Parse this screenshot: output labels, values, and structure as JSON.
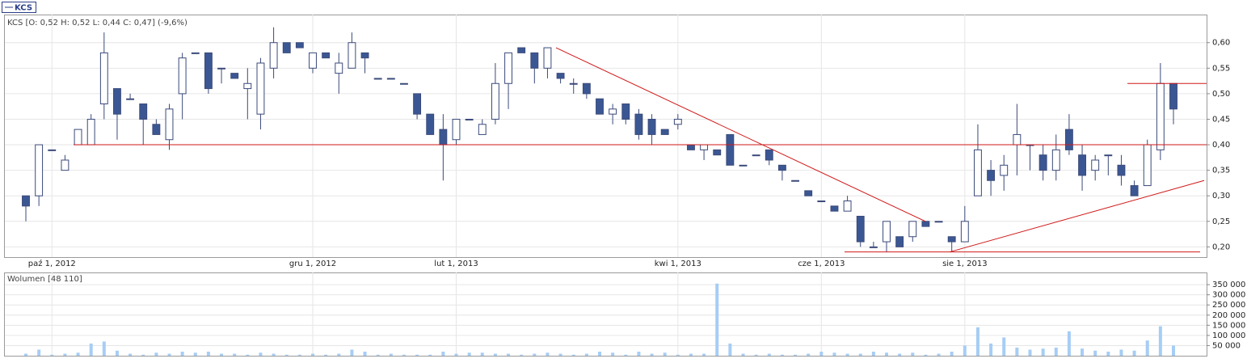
{
  "chart_data": {
    "type": "candlestick",
    "series_name": "KCS",
    "title": "KCS [O: 0,52  H: 0,52  L: 0,44  C: 0,47] (-9,6%)",
    "up_color": "#ffffff",
    "down_color": "#3b5793",
    "outline_color": "#3b4a7a",
    "grid": true,
    "categories": [
      null,
      null,
      "paź 1, 2012",
      null,
      null,
      null,
      null,
      null,
      null,
      null,
      null,
      null,
      null,
      null,
      null,
      null,
      null,
      null,
      null,
      null,
      null,
      null,
      "gru 1, 2012",
      null,
      null,
      null,
      null,
      null,
      null,
      null,
      null,
      null,
      null,
      "lut 1, 2013",
      null,
      null,
      null,
      null,
      null,
      null,
      null,
      null,
      null,
      null,
      null,
      null,
      null,
      null,
      null,
      null,
      "kwi 1, 2013",
      null,
      null,
      null,
      null,
      null,
      null,
      null,
      null,
      null,
      null,
      "cze 1, 2013",
      null,
      null,
      null,
      null,
      null,
      null,
      null,
      null,
      null,
      null,
      "sie 1, 2013",
      null,
      null,
      null,
      null,
      null,
      null,
      null,
      null,
      null,
      null,
      null,
      null,
      null,
      null,
      null,
      null
    ],
    "open": [
      0.3,
      0.3,
      0.39,
      0.35,
      0.4,
      0.4,
      0.48,
      0.51,
      0.49,
      0.48,
      0.44,
      0.41,
      0.5,
      0.58,
      0.58,
      0.55,
      0.54,
      0.51,
      0.46,
      0.55,
      0.6,
      0.6,
      0.55,
      0.58,
      0.54,
      0.55,
      0.58,
      0.53,
      0.53,
      0.52,
      0.5,
      0.46,
      0.43,
      0.41,
      0.45,
      0.42,
      0.45,
      0.52,
      0.59,
      0.58,
      0.55,
      0.54,
      0.52,
      0.52,
      0.49,
      0.46,
      0.48,
      0.46,
      0.45,
      0.43,
      0.44,
      0.4,
      0.39,
      0.39,
      0.42,
      0.36,
      0.38,
      0.39,
      0.36,
      0.33,
      0.31,
      0.29,
      0.28,
      0.27,
      0.26,
      0.2,
      0.21,
      0.22,
      0.22,
      0.25,
      0.25,
      0.22,
      0.21,
      0.3,
      0.35,
      0.34,
      0.4,
      0.4,
      0.38,
      0.35,
      0.43,
      0.38,
      0.35,
      0.38,
      0.36,
      0.32,
      0.32,
      0.39,
      0.52
    ],
    "high": [
      0.3,
      0.4,
      0.39,
      0.38,
      0.43,
      0.46,
      0.62,
      0.51,
      0.5,
      0.48,
      0.45,
      0.48,
      0.58,
      0.58,
      0.58,
      0.55,
      0.54,
      0.55,
      0.57,
      0.63,
      0.6,
      0.6,
      0.58,
      0.58,
      0.58,
      0.62,
      0.58,
      0.53,
      0.53,
      0.52,
      0.5,
      0.46,
      0.46,
      0.45,
      0.45,
      0.45,
      0.56,
      0.58,
      0.59,
      0.58,
      0.59,
      0.54,
      0.53,
      0.52,
      0.49,
      0.48,
      0.48,
      0.47,
      0.46,
      0.43,
      0.46,
      0.4,
      0.4,
      0.39,
      0.42,
      0.36,
      0.38,
      0.39,
      0.36,
      0.33,
      0.31,
      0.29,
      0.28,
      0.3,
      0.26,
      0.21,
      0.25,
      0.22,
      0.25,
      0.25,
      0.25,
      0.22,
      0.28,
      0.44,
      0.37,
      0.38,
      0.48,
      0.4,
      0.4,
      0.42,
      0.46,
      0.4,
      0.38,
      0.38,
      0.38,
      0.33,
      0.41,
      0.56,
      0.52
    ],
    "low": [
      0.25,
      0.28,
      0.39,
      0.35,
      0.4,
      0.4,
      0.45,
      0.41,
      0.49,
      0.4,
      0.42,
      0.39,
      0.45,
      0.58,
      0.5,
      0.52,
      0.53,
      0.45,
      0.43,
      0.53,
      0.58,
      0.59,
      0.54,
      0.57,
      0.5,
      0.55,
      0.54,
      0.53,
      0.53,
      0.52,
      0.45,
      0.42,
      0.33,
      0.4,
      0.45,
      0.42,
      0.44,
      0.47,
      0.58,
      0.52,
      0.53,
      0.52,
      0.5,
      0.49,
      0.46,
      0.44,
      0.44,
      0.41,
      0.4,
      0.42,
      0.43,
      0.39,
      0.37,
      0.38,
      0.36,
      0.36,
      0.38,
      0.36,
      0.33,
      0.33,
      0.3,
      0.29,
      0.27,
      0.27,
      0.2,
      0.2,
      0.19,
      0.2,
      0.21,
      0.24,
      0.25,
      0.19,
      0.21,
      0.3,
      0.3,
      0.31,
      0.34,
      0.35,
      0.33,
      0.33,
      0.38,
      0.31,
      0.33,
      0.34,
      0.32,
      0.3,
      0.32,
      0.37,
      0.44
    ],
    "close": [
      0.28,
      0.4,
      0.39,
      0.37,
      0.43,
      0.45,
      0.58,
      0.46,
      0.49,
      0.45,
      0.42,
      0.47,
      0.57,
      0.58,
      0.51,
      0.55,
      0.53,
      0.52,
      0.56,
      0.6,
      0.58,
      0.59,
      0.58,
      0.57,
      0.56,
      0.6,
      0.57,
      0.53,
      0.53,
      0.52,
      0.46,
      0.42,
      0.4,
      0.45,
      0.45,
      0.44,
      0.52,
      0.58,
      0.58,
      0.55,
      0.59,
      0.53,
      0.52,
      0.5,
      0.46,
      0.47,
      0.45,
      0.42,
      0.42,
      0.42,
      0.45,
      0.39,
      0.4,
      0.38,
      0.36,
      0.36,
      0.38,
      0.37,
      0.35,
      0.33,
      0.3,
      0.29,
      0.27,
      0.29,
      0.21,
      0.2,
      0.25,
      0.2,
      0.25,
      0.24,
      0.25,
      0.21,
      0.25,
      0.39,
      0.33,
      0.36,
      0.42,
      0.4,
      0.35,
      0.39,
      0.39,
      0.34,
      0.37,
      0.38,
      0.34,
      0.3,
      0.4,
      0.52,
      0.47
    ],
    "ylim": [
      0.18,
      0.655
    ],
    "yticks": [
      {
        "value": 0.2,
        "label": "0,20"
      },
      {
        "value": 0.25,
        "label": "0,25"
      },
      {
        "value": 0.3,
        "label": "0,30"
      },
      {
        "value": 0.35,
        "label": "0,35"
      },
      {
        "value": 0.4,
        "label": "0,40"
      },
      {
        "value": 0.45,
        "label": "0,45"
      },
      {
        "value": 0.5,
        "label": "0,50"
      },
      {
        "value": 0.55,
        "label": "0,55"
      },
      {
        "value": 0.6,
        "label": "0,60"
      }
    ],
    "line_color": "#d01818",
    "horizontal_lines": [
      0.4,
      0.19,
      0.52
    ],
    "trend_lines": [
      {
        "start": 0.59,
        "end": 0.25
      },
      {
        "start": 0.19,
        "end": 0.33
      }
    ],
    "volume": {
      "label": "Wolumen [48 110]",
      "color": "#a6cdf5",
      "values": [
        10000,
        30000,
        5000,
        10000,
        15000,
        60000,
        70000,
        25000,
        10000,
        5000,
        15000,
        10000,
        20000,
        15000,
        20000,
        10000,
        10000,
        5000,
        15000,
        10000,
        5000,
        5000,
        10000,
        5000,
        10000,
        30000,
        20000,
        5000,
        10000,
        5000,
        5000,
        5000,
        20000,
        10000,
        15000,
        15000,
        10000,
        10000,
        5000,
        10000,
        15000,
        10000,
        5000,
        10000,
        20000,
        15000,
        5000,
        20000,
        10000,
        15000,
        5000,
        10000,
        10000,
        355000,
        60000,
        10000,
        5000,
        10000,
        5000,
        5000,
        10000,
        20000,
        15000,
        10000,
        10000,
        20000,
        15000,
        10000,
        15000,
        5000,
        10000,
        20000,
        50000,
        140000,
        60000,
        90000,
        40000,
        30000,
        35000,
        40000,
        120000,
        35000,
        25000,
        20000,
        30000,
        25000,
        75000,
        145000,
        50000
      ],
      "ylim": [
        0,
        410000
      ],
      "yticks": [
        {
          "value": 50000,
          "label": "50 000"
        },
        {
          "value": 100000,
          "label": "100 000"
        },
        {
          "value": 150000,
          "label": "150 000"
        },
        {
          "value": 200000,
          "label": "200 000"
        },
        {
          "value": 250000,
          "label": "250 000"
        },
        {
          "value": 300000,
          "label": "300 000"
        },
        {
          "value": 350000,
          "label": "350 000"
        }
      ]
    }
  }
}
